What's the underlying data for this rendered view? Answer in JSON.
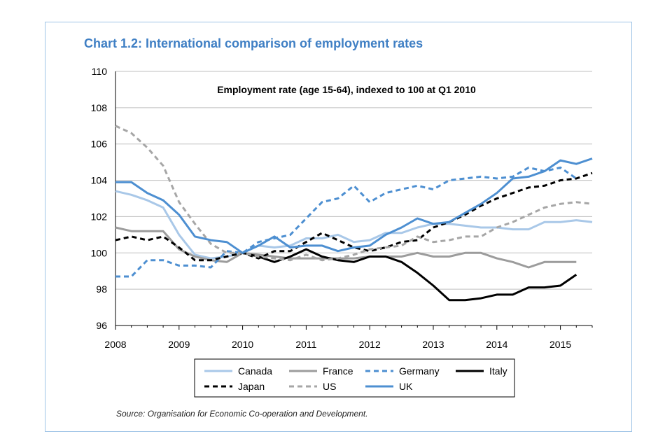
{
  "title": "Chart 1.2: International comparison of employment rates",
  "source": "Source: Organisation for Economic Co-operation and Development.",
  "chart_data": {
    "type": "line",
    "title": "Employment rate (age 15-64), indexed to 100 at Q1 2010",
    "xlabel": "",
    "ylabel": "",
    "xlim": [
      2008,
      2015.5
    ],
    "ylim": [
      96,
      110
    ],
    "x_ticks": [
      "2008",
      "2009",
      "2010",
      "2011",
      "2012",
      "2013",
      "2014",
      "2015"
    ],
    "y_ticks": [
      "96",
      "98",
      "100",
      "102",
      "104",
      "106",
      "108",
      "110"
    ],
    "x": [
      2008.0,
      2008.25,
      2008.5,
      2008.75,
      2009.0,
      2009.25,
      2009.5,
      2009.75,
      2010.0,
      2010.25,
      2010.5,
      2010.75,
      2011.0,
      2011.25,
      2011.5,
      2011.75,
      2012.0,
      2012.25,
      2012.5,
      2012.75,
      2013.0,
      2013.25,
      2013.5,
      2013.75,
      2014.0,
      2014.25,
      2014.5,
      2014.75,
      2015.0,
      2015.25,
      2015.5
    ],
    "series": [
      {
        "name": "Canada",
        "color": "#a9c8e8",
        "dash": "solid",
        "width": 3,
        "values": [
          103.4,
          103.2,
          102.9,
          102.5,
          101.0,
          99.9,
          99.7,
          99.8,
          100.0,
          100.4,
          100.3,
          100.4,
          100.8,
          100.8,
          101.0,
          100.6,
          100.7,
          101.1,
          101.1,
          101.4,
          101.6,
          101.6,
          101.5,
          101.4,
          101.4,
          101.3,
          101.3,
          101.7,
          101.7,
          101.8,
          101.7
        ]
      },
      {
        "name": "France",
        "color": "#9c9c9c",
        "dash": "solid",
        "width": 3,
        "values": [
          101.4,
          101.2,
          101.2,
          101.2,
          100.2,
          99.8,
          99.6,
          99.5,
          100.0,
          99.9,
          99.8,
          99.7,
          99.7,
          99.7,
          99.7,
          99.7,
          99.8,
          99.8,
          99.8,
          100.0,
          99.8,
          99.8,
          100.0,
          100.0,
          99.7,
          99.5,
          99.2,
          99.5,
          99.5,
          99.5,
          null
        ]
      },
      {
        "name": "Germany",
        "color": "#4d8fd1",
        "dash": "dashed",
        "width": 3,
        "values": [
          98.7,
          98.7,
          99.6,
          99.6,
          99.3,
          99.3,
          99.2,
          100.1,
          100.0,
          100.6,
          100.8,
          101.0,
          101.9,
          102.8,
          103.0,
          103.7,
          102.8,
          103.3,
          103.5,
          103.7,
          103.5,
          104.0,
          104.1,
          104.2,
          104.1,
          104.2,
          104.7,
          104.5,
          104.7,
          104.1,
          null
        ]
      },
      {
        "name": "Italy",
        "color": "#000000",
        "dash": "solid",
        "width": 3,
        "values": [
          null,
          null,
          null,
          null,
          null,
          null,
          null,
          null,
          100.0,
          99.8,
          99.5,
          99.8,
          100.2,
          99.8,
          99.6,
          99.5,
          99.8,
          99.8,
          99.5,
          98.9,
          98.2,
          97.4,
          97.4,
          97.5,
          97.7,
          97.7,
          98.1,
          98.1,
          98.2,
          98.8,
          null
        ]
      },
      {
        "name": "Japan",
        "color": "#000000",
        "dash": "dashed",
        "width": 3,
        "values": [
          100.7,
          100.9,
          100.7,
          100.9,
          100.3,
          99.6,
          99.6,
          99.8,
          100.0,
          99.7,
          100.1,
          100.1,
          100.6,
          101.1,
          100.7,
          100.3,
          100.1,
          100.3,
          100.6,
          100.7,
          101.4,
          101.7,
          102.1,
          102.6,
          103.0,
          103.3,
          103.6,
          103.7,
          104.0,
          104.1,
          104.4
        ]
      },
      {
        "name": "US",
        "color": "#a6a6a6",
        "dash": "dashed",
        "width": 3,
        "values": [
          107.0,
          106.6,
          105.8,
          104.8,
          102.8,
          101.6,
          100.5,
          100.0,
          100.0,
          99.8,
          99.7,
          99.6,
          99.9,
          99.6,
          99.7,
          99.9,
          100.2,
          100.3,
          100.4,
          100.9,
          100.6,
          100.7,
          100.9,
          100.9,
          101.4,
          101.7,
          102.1,
          102.5,
          102.7,
          102.8,
          102.7
        ]
      },
      {
        "name": "UK",
        "color": "#4d8fd1",
        "dash": "solid",
        "width": 3,
        "values": [
          103.9,
          103.9,
          103.3,
          102.9,
          102.1,
          100.9,
          100.7,
          100.6,
          100.0,
          100.4,
          100.9,
          100.3,
          100.4,
          100.4,
          100.1,
          100.3,
          100.4,
          101.0,
          101.4,
          101.9,
          101.6,
          101.7,
          102.2,
          102.7,
          103.3,
          104.1,
          104.2,
          104.5,
          105.1,
          104.9,
          105.2
        ]
      }
    ]
  }
}
